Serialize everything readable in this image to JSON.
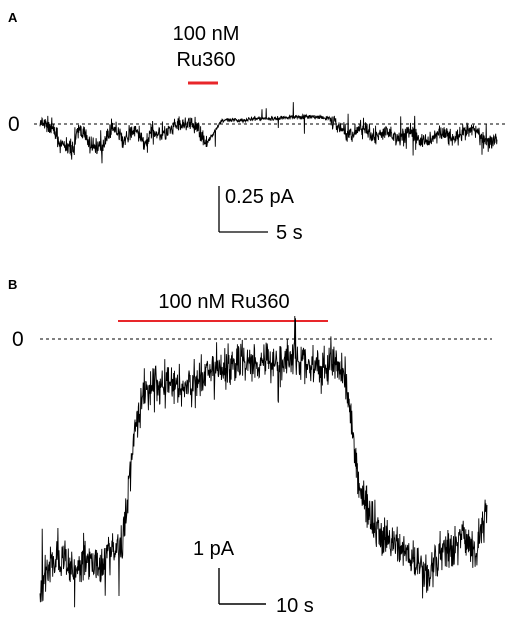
{
  "chart_data": [
    {
      "type": "line",
      "panel": "A",
      "drug_label_line1": "100 nM",
      "drug_label_line2": "Ru360",
      "zero_label": "0",
      "scale_bar": {
        "y_label": "0.25 pA",
        "x_label": "5 s",
        "y_value_pA": 0.25,
        "x_value_s": 5
      },
      "colors": {
        "trace": "#000000",
        "drug_bar": "#e8262a"
      },
      "grid": false,
      "series": [
        {
          "x": [
            0,
            1.2,
            2.4,
            3.6,
            4.4,
            5.6,
            6.8,
            8.0,
            9.2,
            10.4,
            11.6,
            12.4,
            13.6,
            14.8,
            16.0,
            17.2,
            18.4,
            20.0,
            22.0,
            24.0,
            26.0,
            28.0,
            30.0,
            32.0,
            34.0,
            36.0,
            37.0,
            38.4,
            39.6,
            40.8,
            42.0,
            43.2,
            44.4,
            45.6,
            46.8,
            48.0,
            49.2,
            50.4
          ],
          "y": [
            0,
            -0.01,
            -0.13,
            -0.14,
            -0.02,
            -0.12,
            -0.13,
            -0.01,
            -0.1,
            -0.03,
            -0.11,
            -0.04,
            -0.06,
            -0.02,
            0.0,
            -0.01,
            -0.11,
            0.02,
            0.02,
            0.03,
            0.03,
            0.04,
            0.04,
            0.03,
            -0.06,
            -0.02,
            -0.08,
            -0.04,
            -0.09,
            -0.03,
            -0.1,
            -0.08,
            -0.04,
            -0.09,
            -0.05,
            -0.03,
            -0.1,
            -0.08
          ]
        }
      ],
      "drug_interval_s": [
        18.5,
        21.5
      ]
    },
    {
      "type": "line",
      "panel": "B",
      "drug_label": "100 nM Ru360",
      "zero_label": "0",
      "scale_bar": {
        "y_label": "1 pA",
        "x_label": "10 s",
        "y_value_pA": 1,
        "x_value_s": 10
      },
      "colors": {
        "trace": "#000000",
        "drug_bar": "#e8262a"
      },
      "grid": false,
      "series": [
        {
          "x": [
            0,
            2,
            4,
            6,
            8,
            10,
            12,
            14,
            16,
            18,
            20,
            22,
            24,
            26,
            28,
            30,
            32,
            34,
            36,
            38,
            40,
            42,
            44,
            46,
            48,
            50,
            52,
            54,
            56,
            58,
            60,
            62,
            64,
            66,
            68,
            70,
            72,
            74,
            76
          ],
          "y": [
            -6.6,
            -5.9,
            -5.8,
            -6.1,
            -5.8,
            -5.9,
            -5.6,
            -5.5,
            -2.4,
            -1.2,
            -1.3,
            -1.1,
            -1.3,
            -1.2,
            -1.0,
            -0.9,
            -0.7,
            -0.6,
            -0.6,
            -0.5,
            -0.6,
            -0.5,
            -0.6,
            -0.7,
            -0.8,
            -0.6,
            -1.0,
            -3.7,
            -4.6,
            -5.2,
            -5.4,
            -5.6,
            -5.9,
            -6.3,
            -5.6,
            -5.5,
            -5.2,
            -5.6,
            -4.4
          ]
        }
      ],
      "drug_interval_s": [
        10,
        42
      ]
    }
  ]
}
